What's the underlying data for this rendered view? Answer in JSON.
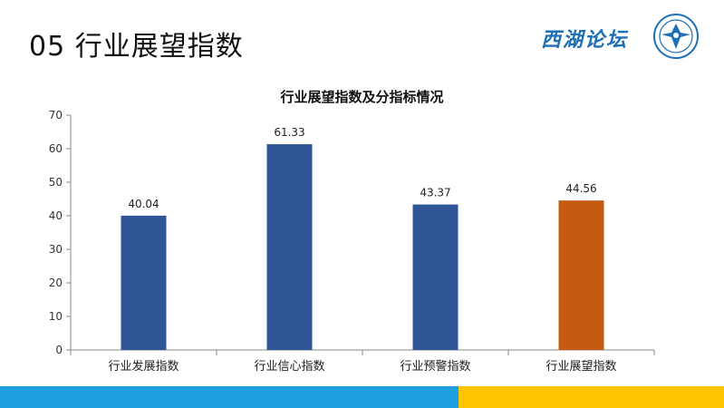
{
  "slide": {
    "title": "05 行业展望指数",
    "brand_name": "西湖论坛"
  },
  "colors": {
    "bar_blue": "#2f5597",
    "bar_highlight": "#c55a11",
    "footer_blue": "#1d9fe0",
    "footer_yellow": "#ffc300",
    "brand": "#1f6fb6"
  },
  "chart_data": {
    "type": "bar",
    "title": "行业展望指数及分指标情况",
    "categories": [
      "行业发展指数",
      "行业信心指数",
      "行业预警指数",
      "行业展望指数"
    ],
    "values": [
      40.04,
      61.33,
      43.37,
      44.56
    ],
    "value_labels": [
      "40.04",
      "61.33",
      "43.37",
      "44.56"
    ],
    "highlight_index": 3,
    "ylim": [
      0,
      70
    ],
    "yticks": [
      0,
      10,
      20,
      30,
      40,
      50,
      60,
      70
    ],
    "xlabel": "",
    "ylabel": "",
    "grid": false,
    "legend": "none"
  }
}
